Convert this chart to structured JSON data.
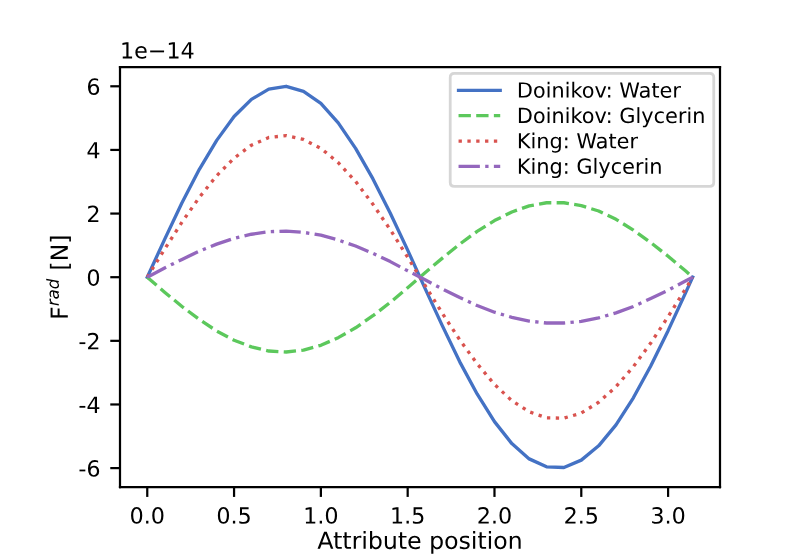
{
  "chart_data": {
    "type": "line",
    "xlabel": "Attribute position",
    "ylabel": "F$^{rad}$ [N]",
    "x": [
      0,
      0.1,
      0.2,
      0.3,
      0.4,
      0.5,
      0.6,
      0.7,
      0.8,
      0.9,
      1.0,
      1.1,
      1.2,
      1.3,
      1.4,
      1.5,
      1.6,
      1.7,
      1.8,
      1.9,
      2.0,
      2.1,
      2.2,
      2.3,
      2.4,
      2.5,
      2.6,
      2.7,
      2.8,
      2.9,
      3.0,
      3.1,
      3.1416
    ],
    "series": [
      {
        "name": "Doinikov: Water",
        "color": "#4472c4",
        "line_style": "solid",
        "values": [
          0,
          1.19,
          2.34,
          3.39,
          4.3,
          5.05,
          5.59,
          5.91,
          6.0,
          5.84,
          5.46,
          4.85,
          4.05,
          3.09,
          2.01,
          0.85,
          -0.35,
          -1.53,
          -2.66,
          -3.67,
          -4.54,
          -5.23,
          -5.71,
          -5.96,
          -5.98,
          -5.75,
          -5.3,
          -4.64,
          -3.79,
          -2.79,
          -1.68,
          -0.5,
          0
        ]
      },
      {
        "name": "Doinikov: Glycerin",
        "color": "#5cc85c",
        "line_style": "dashed",
        "values": [
          0,
          -0.47,
          -0.92,
          -1.33,
          -1.69,
          -1.98,
          -2.19,
          -2.32,
          -2.35,
          -2.29,
          -2.14,
          -1.9,
          -1.59,
          -1.21,
          -0.79,
          -0.33,
          0.14,
          0.6,
          1.04,
          1.44,
          1.78,
          2.05,
          2.24,
          2.34,
          2.34,
          2.25,
          2.08,
          1.82,
          1.48,
          1.09,
          0.66,
          0.2,
          0
        ]
      },
      {
        "name": "King: Water",
        "color": "#d9534f",
        "line_style": "dotted",
        "values": [
          0,
          0.88,
          1.73,
          2.51,
          3.19,
          3.74,
          4.15,
          4.39,
          4.45,
          4.33,
          4.05,
          3.6,
          3.01,
          2.29,
          1.49,
          0.63,
          -0.26,
          -1.14,
          -1.97,
          -2.72,
          -3.37,
          -3.88,
          -4.23,
          -4.42,
          -4.43,
          -4.27,
          -3.93,
          -3.44,
          -2.81,
          -2.07,
          -1.24,
          -0.37,
          0
        ]
      },
      {
        "name": "King: Glycerin",
        "color": "#9467bd",
        "line_style": "dashdot",
        "values": [
          0,
          0.29,
          0.56,
          0.82,
          1.04,
          1.22,
          1.35,
          1.43,
          1.45,
          1.41,
          1.32,
          1.17,
          0.98,
          0.75,
          0.49,
          0.2,
          -0.08,
          -0.37,
          -0.64,
          -0.89,
          -1.1,
          -1.26,
          -1.38,
          -1.44,
          -1.44,
          -1.39,
          -1.28,
          -1.12,
          -0.92,
          -0.67,
          -0.41,
          -0.12,
          0
        ]
      }
    ],
    "xlim": [
      -0.157,
      3.299
    ],
    "xticks": [
      {
        "value": 0,
        "label": "0.0"
      },
      {
        "value": 0.5,
        "label": "0.5"
      },
      {
        "value": 1,
        "label": "1.0"
      },
      {
        "value": 1.5,
        "label": "1.5"
      },
      {
        "value": 2,
        "label": "2.0"
      },
      {
        "value": 2.5,
        "label": "2.5"
      },
      {
        "value": 3,
        "label": "3.0"
      }
    ],
    "ylim": [
      -6.6,
      6.6
    ],
    "yticks": [
      -6,
      -4,
      -2,
      0,
      2,
      4,
      6
    ],
    "annotations": [
      "1e−14"
    ],
    "grid": false,
    "legend": "top right"
  }
}
